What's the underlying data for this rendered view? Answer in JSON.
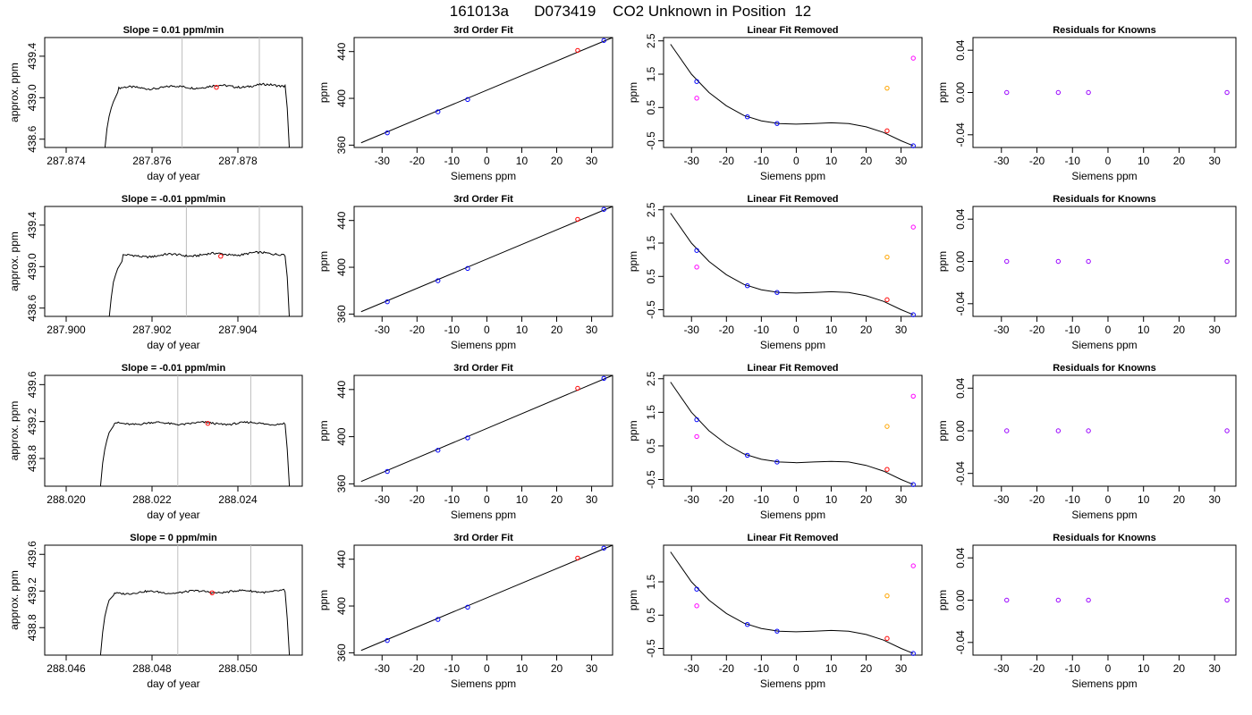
{
  "title": "161013a      D073419    CO2 Unknown in Position  12",
  "colors": {
    "known": "#0000ff",
    "unknown_fit": "#ff0000",
    "orange": "#ffa500",
    "magenta": "#ff00ff",
    "purple": "#9900ff",
    "vline": "#bebebe"
  },
  "rows": [
    {
      "time": {
        "title": "Slope =  0.01  ppm/min",
        "xlabel": "day of year",
        "ylabel": "approx. ppm",
        "xlim": [
          287.8735,
          287.8795
        ],
        "ylim": [
          438.52,
          439.58
        ],
        "xticks": [
          {
            "v": 287.874,
            "l": "287.874"
          },
          {
            "v": 287.876,
            "l": "287.876"
          },
          {
            "v": 287.878,
            "l": "287.878"
          }
        ],
        "yticks": [
          {
            "v": 438.6,
            "l": "438.6"
          },
          {
            "v": 439.0,
            "l": "439.0"
          },
          {
            "v": 439.4,
            "l": "439.4"
          }
        ],
        "vlines": [
          287.8767,
          287.8785
        ],
        "trace": {
          "t0": 287.8749,
          "t1": 287.8791,
          "rise": 287.8752,
          "ramp": [
            [
              287.8749,
              438.5
            ],
            [
              287.87495,
              438.7
            ],
            [
              287.875,
              438.82
            ],
            [
              287.87505,
              438.9
            ],
            [
              287.8751,
              438.96
            ],
            [
              287.8752,
              439.05
            ]
          ],
          "level": 439.09,
          "level_end": 439.12,
          "noise": 0.02,
          "end_drop": [
            [
              287.8791,
              439.12
            ],
            [
              287.87915,
              438.9
            ],
            [
              287.8792,
              438.5
            ]
          ]
        },
        "point": [
          287.8775,
          439.1
        ]
      }
    },
    {
      "time": {
        "title": "Slope =  -0.01  ppm/min",
        "xlabel": "day of year",
        "ylabel": "approx. ppm",
        "xlim": [
          287.8995,
          287.9055
        ],
        "ylim": [
          438.52,
          439.58
        ],
        "xticks": [
          {
            "v": 287.9,
            "l": "287.900"
          },
          {
            "v": 287.902,
            "l": "287.902"
          },
          {
            "v": 287.904,
            "l": "287.904"
          }
        ],
        "yticks": [
          {
            "v": 438.6,
            "l": "438.6"
          },
          {
            "v": 439.0,
            "l": "439.0"
          },
          {
            "v": 439.4,
            "l": "439.4"
          }
        ],
        "vlines": [
          287.9028,
          287.9045
        ],
        "trace": {
          "t0": 287.901,
          "t1": 287.9051,
          "rise": 287.9013,
          "ramp": [
            [
              287.901,
              438.5
            ],
            [
              287.90105,
              438.7
            ],
            [
              287.9011,
              438.85
            ],
            [
              287.90115,
              438.92
            ],
            [
              287.9012,
              438.98
            ],
            [
              287.9013,
              439.05
            ]
          ],
          "level": 439.1,
          "level_end": 439.13,
          "noise": 0.02,
          "end_drop": [
            [
              287.9051,
              439.1
            ],
            [
              287.90515,
              438.9
            ],
            [
              287.9052,
              438.5
            ]
          ]
        },
        "point": [
          287.9036,
          439.1
        ]
      }
    },
    {
      "time": {
        "title": "Slope =  -0.01  ppm/min",
        "xlabel": "day of year",
        "ylabel": "approx. ppm",
        "xlim": [
          288.0195,
          288.0255
        ],
        "ylim": [
          438.5,
          439.7
        ],
        "xticks": [
          {
            "v": 288.02,
            "l": "288.020"
          },
          {
            "v": 288.022,
            "l": "288.022"
          },
          {
            "v": 288.024,
            "l": "288.024"
          }
        ],
        "yticks": [
          {
            "v": 438.8,
            "l": "438.8"
          },
          {
            "v": 439.2,
            "l": "439.2"
          },
          {
            "v": 439.6,
            "l": "439.6"
          }
        ],
        "vlines": [
          288.0226,
          288.0243
        ],
        "trace": {
          "t0": 288.0208,
          "t1": 288.0251,
          "rise": 288.0211,
          "ramp": [
            [
              288.0208,
              438.5
            ],
            [
              288.02085,
              438.75
            ],
            [
              288.0209,
              438.9
            ],
            [
              288.02095,
              439.0
            ],
            [
              288.021,
              439.08
            ],
            [
              288.0211,
              439.15
            ]
          ],
          "level": 439.18,
          "level_end": 439.18,
          "noise": 0.02,
          "end_drop": [
            [
              288.0251,
              439.17
            ],
            [
              288.02515,
              438.9
            ],
            [
              288.0252,
              438.5
            ]
          ]
        },
        "point": [
          288.0233,
          439.18
        ]
      }
    },
    {
      "time": {
        "title": "Slope =  0  ppm/min",
        "xlabel": "day of year",
        "ylabel": "approx. ppm",
        "xlim": [
          288.0455,
          288.0515
        ],
        "ylim": [
          438.5,
          439.7
        ],
        "xticks": [
          {
            "v": 288.046,
            "l": "288.046"
          },
          {
            "v": 288.048,
            "l": "288.048"
          },
          {
            "v": 288.05,
            "l": "288.050"
          }
        ],
        "yticks": [
          {
            "v": 438.8,
            "l": "438.8"
          },
          {
            "v": 439.2,
            "l": "439.2"
          },
          {
            "v": 439.6,
            "l": "439.6"
          }
        ],
        "vlines": [
          288.0486,
          288.0503
        ],
        "trace": {
          "t0": 288.0468,
          "t1": 288.0511,
          "rise": 288.0471,
          "ramp": [
            [
              288.0468,
              438.5
            ],
            [
              288.04685,
              438.75
            ],
            [
              288.0469,
              438.92
            ],
            [
              288.04695,
              439.02
            ],
            [
              288.047,
              439.1
            ],
            [
              288.0471,
              439.15
            ]
          ],
          "level": 439.18,
          "level_end": 439.2,
          "noise": 0.02,
          "end_drop": [
            [
              288.0511,
              439.19
            ],
            [
              288.05115,
              438.9
            ],
            [
              288.0512,
              438.5
            ]
          ]
        },
        "point": [
          288.0494,
          439.18
        ]
      }
    }
  ],
  "fit": {
    "title": "3rd Order Fit",
    "xlabel": "Siemens ppm",
    "ylabel": "ppm",
    "xlim": [
      -38,
      36
    ],
    "ylim": [
      358,
      452
    ],
    "xticks": [
      -30,
      -20,
      -10,
      0,
      10,
      20,
      30
    ],
    "yticks": [
      {
        "v": 360,
        "l": "360"
      },
      {
        "v": 400,
        "l": "400"
      },
      {
        "v": 440,
        "l": "440"
      }
    ],
    "line": [
      [
        -36,
        362
      ],
      [
        36,
        452
      ]
    ],
    "knowns": [
      [
        -28.5,
        370.5
      ],
      [
        -14,
        388.5
      ],
      [
        -5.5,
        399
      ],
      [
        33.5,
        449.5
      ]
    ],
    "unknown": [
      26,
      441
    ]
  },
  "linfit": {
    "title": "Linear Fit Removed",
    "xlabel": "Siemens ppm",
    "ylabel": "ppm",
    "xlim": [
      -38,
      36
    ],
    "ylim": [
      -0.7,
      2.6
    ],
    "xticks": [
      -30,
      -20,
      -10,
      0,
      10,
      20,
      30
    ],
    "yticks": [
      {
        "v": -0.5,
        "l": "-0.5"
      },
      {
        "v": 0.5,
        "l": "0.5"
      },
      {
        "v": 1.5,
        "l": "1.5"
      },
      {
        "v": 2.5,
        "l": "2.5"
      }
    ],
    "yticks_last": [
      {
        "v": -0.5,
        "l": "-0.5"
      },
      {
        "v": 0.5,
        "l": "0.5"
      },
      {
        "v": 1.5,
        "l": "1.5"
      }
    ],
    "curve": [
      [
        -36,
        2.4
      ],
      [
        -30,
        1.5
      ],
      [
        -25,
        0.95
      ],
      [
        -20,
        0.55
      ],
      [
        -15,
        0.26
      ],
      [
        -10,
        0.1
      ],
      [
        -5,
        0.02
      ],
      [
        0,
        0.0
      ],
      [
        5,
        0.02
      ],
      [
        10,
        0.04
      ],
      [
        15,
        0.02
      ],
      [
        20,
        -0.08
      ],
      [
        25,
        -0.25
      ],
      [
        30,
        -0.5
      ],
      [
        33.5,
        -0.65
      ]
    ],
    "knowns": [
      [
        -28.5,
        1.28
      ],
      [
        -14,
        0.22
      ],
      [
        -5.5,
        0.02
      ],
      [
        33.5,
        -0.65
      ]
    ],
    "unknown_fit": [
      26,
      -0.2
    ],
    "orange": [
      26,
      1.08
    ],
    "magenta": [
      [
        -28.5,
        0.78
      ],
      [
        33.5,
        1.98
      ]
    ]
  },
  "resid": {
    "title": "Residuals for Knowns",
    "xlabel": "Siemens ppm",
    "ylabel": "ppm",
    "xlim": [
      -38,
      36
    ],
    "ylim": [
      -0.052,
      0.052
    ],
    "xticks": [
      -30,
      -20,
      -10,
      0,
      10,
      20,
      30
    ],
    "yticks": [
      {
        "v": -0.04,
        "l": "-0.04"
      },
      {
        "v": 0.0,
        "l": "0.00"
      },
      {
        "v": 0.04,
        "l": "0.04"
      }
    ],
    "points": [
      [
        -28.5,
        0
      ],
      [
        -14,
        0
      ],
      [
        -5.5,
        0
      ],
      [
        33.5,
        0
      ]
    ]
  }
}
